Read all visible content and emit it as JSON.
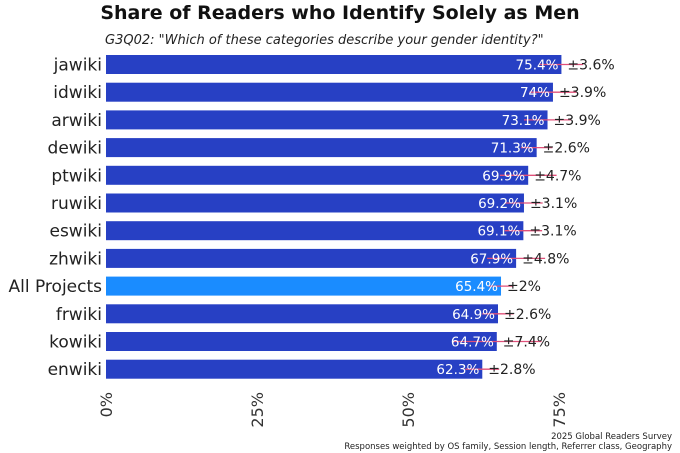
{
  "title": "Share of Readers who Identify Solely as Men",
  "subtitle": "G3Q02: \"Which of these categories describe your gender identity?\"",
  "footer": {
    "line1": "2025 Global Readers Survey",
    "line2": "Responses weighted by OS family, Session length, Referrer class, Geography"
  },
  "colors": {
    "bar": "#2740c4",
    "highlight": "#1a8cff",
    "error": "#e0507a"
  },
  "chart_data": {
    "type": "bar",
    "orientation": "horizontal",
    "categories": [
      "jawiki",
      "idwiki",
      "arwiki",
      "dewiki",
      "ptwiki",
      "ruwiki",
      "eswiki",
      "zhwiki",
      "All Projects",
      "frwiki",
      "kowiki",
      "enwiki"
    ],
    "values": [
      75.4,
      74,
      73.1,
      71.3,
      69.9,
      69.2,
      69.1,
      67.9,
      65.4,
      64.9,
      64.7,
      62.3
    ],
    "value_labels": [
      "75.4%",
      "74%",
      "73.1%",
      "71.3%",
      "69.9%",
      "69.2%",
      "69.1%",
      "67.9%",
      "65.4%",
      "64.9%",
      "64.7%",
      "62.3%"
    ],
    "errors": [
      3.6,
      3.9,
      3.9,
      2.6,
      4.7,
      3.1,
      3.1,
      4.8,
      2,
      2.6,
      7.4,
      2.8
    ],
    "error_labels": [
      "±3.6%",
      "±3.9%",
      "±3.9%",
      "±2.6%",
      "±4.7%",
      "±3.1%",
      "±3.1%",
      "±4.8%",
      "±2%",
      "±2.6%",
      "±7.4%",
      "±2.8%"
    ],
    "highlight": "All Projects",
    "xlim": [
      0,
      80
    ],
    "xticks": [
      0,
      25,
      50,
      75
    ],
    "xtick_labels": [
      "0%",
      "25%",
      "50%",
      "75%"
    ],
    "grid": false
  }
}
